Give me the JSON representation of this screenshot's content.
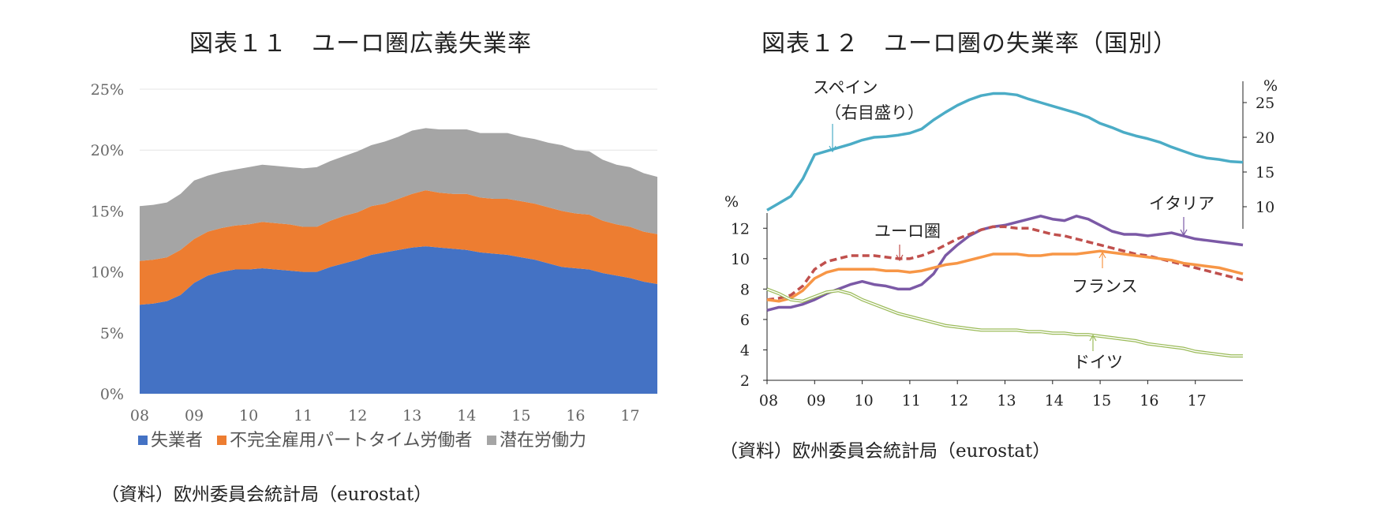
{
  "chart_data": [
    {
      "type": "area",
      "title": "図表１１　ユーロ圏広義失業率",
      "source": "（資料）欧州委員会統計局（eurostat）",
      "x_labels": [
        "08",
        "09",
        "10",
        "11",
        "12",
        "13",
        "14",
        "15",
        "16",
        "17"
      ],
      "y_ticks": [
        "0%",
        "5%",
        "10%",
        "15%",
        "20%",
        "25%"
      ],
      "ylim": [
        0,
        25
      ],
      "legend_position": "bottom",
      "x": [
        2008.0,
        2008.25,
        2008.5,
        2008.75,
        2009.0,
        2009.25,
        2009.5,
        2009.75,
        2010.0,
        2010.25,
        2010.5,
        2010.75,
        2011.0,
        2011.25,
        2011.5,
        2011.75,
        2012.0,
        2012.25,
        2012.5,
        2012.75,
        2013.0,
        2013.25,
        2013.5,
        2013.75,
        2014.0,
        2014.25,
        2014.5,
        2014.75,
        2015.0,
        2015.25,
        2015.5,
        2015.75,
        2016.0,
        2016.25,
        2016.5,
        2016.75,
        2017.0,
        2017.25,
        2017.5
      ],
      "series": [
        {
          "name": "失業者",
          "color": "#4472C4",
          "values": [
            7.3,
            7.4,
            7.6,
            8.1,
            9.1,
            9.7,
            10.0,
            10.2,
            10.2,
            10.3,
            10.2,
            10.1,
            10.0,
            10.0,
            10.4,
            10.7,
            11.0,
            11.4,
            11.6,
            11.8,
            12.0,
            12.1,
            12.0,
            11.9,
            11.8,
            11.6,
            11.5,
            11.4,
            11.2,
            11.0,
            10.7,
            10.4,
            10.3,
            10.2,
            9.9,
            9.7,
            9.5,
            9.2,
            9.0
          ]
        },
        {
          "name": "不完全雇用パートタイム労働者",
          "color": "#ED7D31",
          "values": [
            3.6,
            3.6,
            3.6,
            3.7,
            3.6,
            3.6,
            3.6,
            3.6,
            3.7,
            3.8,
            3.8,
            3.8,
            3.7,
            3.7,
            3.8,
            3.9,
            3.9,
            4.0,
            4.0,
            4.2,
            4.4,
            4.6,
            4.5,
            4.5,
            4.6,
            4.5,
            4.5,
            4.6,
            4.6,
            4.6,
            4.6,
            4.6,
            4.5,
            4.5,
            4.3,
            4.2,
            4.2,
            4.1,
            4.1
          ]
        },
        {
          "name": "潜在労働力",
          "color": "#A5A5A5",
          "values": [
            4.5,
            4.5,
            4.5,
            4.6,
            4.8,
            4.6,
            4.6,
            4.6,
            4.7,
            4.7,
            4.7,
            4.7,
            4.8,
            4.9,
            4.9,
            4.9,
            5.0,
            5.0,
            5.1,
            5.1,
            5.2,
            5.1,
            5.2,
            5.3,
            5.3,
            5.3,
            5.4,
            5.4,
            5.3,
            5.3,
            5.3,
            5.4,
            5.2,
            5.2,
            5.0,
            4.9,
            4.9,
            4.8,
            4.7
          ]
        }
      ]
    },
    {
      "type": "line",
      "title": "図表１２　ユーロ圏の失業率（国別）",
      "source": "（資料）欧州委員会統計局（eurostat）",
      "x_labels": [
        "08",
        "09",
        "10",
        "11",
        "12",
        "13",
        "14",
        "15",
        "16",
        "17"
      ],
      "y_left_unit": "%",
      "y_left_ticks": [
        "2",
        "4",
        "6",
        "8",
        "10",
        "12"
      ],
      "y_left_lim": [
        2,
        13
      ],
      "y_right_unit": "%",
      "y_right_ticks": [
        "10",
        "15",
        "20",
        "25"
      ],
      "x": [
        2008.0,
        2008.25,
        2008.5,
        2008.75,
        2009.0,
        2009.25,
        2009.5,
        2009.75,
        2010.0,
        2010.25,
        2010.5,
        2010.75,
        2011.0,
        2011.25,
        2011.5,
        2011.75,
        2012.0,
        2012.25,
        2012.5,
        2012.75,
        2013.0,
        2013.25,
        2013.5,
        2013.75,
        2014.0,
        2014.25,
        2014.5,
        2014.75,
        2015.0,
        2015.25,
        2015.5,
        2015.75,
        2016.0,
        2016.25,
        2016.5,
        2016.75,
        2017.0,
        2017.25,
        2017.5,
        2017.75,
        2018.0
      ],
      "series": [
        {
          "name": "スペイン",
          "label": "スペイン",
          "label2": "（右目盛り）",
          "axis": "right",
          "color": "#4BACC6",
          "values": [
            9.5,
            10.5,
            11.5,
            14.0,
            17.5,
            18.0,
            18.5,
            19.0,
            19.6,
            20.0,
            20.1,
            20.3,
            20.6,
            21.2,
            22.5,
            23.6,
            24.6,
            25.4,
            26.0,
            26.3,
            26.3,
            26.1,
            25.5,
            25.0,
            24.5,
            24.0,
            23.5,
            22.9,
            22.0,
            21.4,
            20.7,
            20.2,
            19.8,
            19.3,
            18.6,
            18.0,
            17.4,
            17.0,
            16.8,
            16.5,
            16.4
          ]
        },
        {
          "name": "イタリア",
          "label": "イタリア",
          "axis": "left",
          "color": "#7B59A6",
          "values": [
            6.6,
            6.8,
            6.8,
            7.0,
            7.3,
            7.7,
            8.0,
            8.3,
            8.5,
            8.3,
            8.2,
            8.0,
            8.0,
            8.3,
            9.0,
            10.2,
            10.9,
            11.5,
            11.9,
            12.1,
            12.2,
            12.4,
            12.6,
            12.8,
            12.6,
            12.5,
            12.8,
            12.6,
            12.2,
            11.8,
            11.6,
            11.6,
            11.5,
            11.6,
            11.7,
            11.5,
            11.3,
            11.2,
            11.1,
            11.0,
            10.9
          ]
        },
        {
          "name": "ユーロ圏",
          "label": "ユーロ圏",
          "axis": "left",
          "color": "#C0504D",
          "dashed": true,
          "values": [
            7.3,
            7.4,
            7.6,
            8.2,
            9.3,
            9.8,
            10.0,
            10.2,
            10.2,
            10.2,
            10.1,
            10.0,
            10.0,
            10.2,
            10.5,
            10.9,
            11.3,
            11.6,
            11.9,
            12.1,
            12.1,
            12.0,
            12.0,
            11.8,
            11.6,
            11.5,
            11.3,
            11.1,
            10.9,
            10.7,
            10.5,
            10.3,
            10.2,
            10.0,
            9.8,
            9.6,
            9.4,
            9.2,
            9.0,
            8.8,
            8.6
          ]
        },
        {
          "name": "フランス",
          "label": "フランス",
          "axis": "left",
          "color": "#F79646",
          "values": [
            7.3,
            7.2,
            7.4,
            7.9,
            8.7,
            9.1,
            9.3,
            9.3,
            9.3,
            9.3,
            9.2,
            9.2,
            9.1,
            9.2,
            9.4,
            9.6,
            9.7,
            9.9,
            10.1,
            10.3,
            10.3,
            10.3,
            10.2,
            10.2,
            10.3,
            10.3,
            10.3,
            10.4,
            10.5,
            10.4,
            10.3,
            10.2,
            10.1,
            10.0,
            9.9,
            9.7,
            9.6,
            9.5,
            9.4,
            9.2,
            9.0
          ]
        },
        {
          "name": "ドイツ",
          "label": "ドイツ",
          "axis": "left",
          "color": "#9BBB59",
          "double": true,
          "values": [
            8.0,
            7.7,
            7.3,
            7.2,
            7.5,
            7.8,
            7.9,
            7.7,
            7.3,
            7.0,
            6.7,
            6.4,
            6.2,
            6.0,
            5.8,
            5.6,
            5.5,
            5.4,
            5.3,
            5.3,
            5.3,
            5.3,
            5.2,
            5.2,
            5.1,
            5.1,
            5.0,
            5.0,
            4.9,
            4.8,
            4.7,
            4.6,
            4.4,
            4.3,
            4.2,
            4.1,
            3.9,
            3.8,
            3.7,
            3.6,
            3.6
          ]
        }
      ]
    }
  ]
}
